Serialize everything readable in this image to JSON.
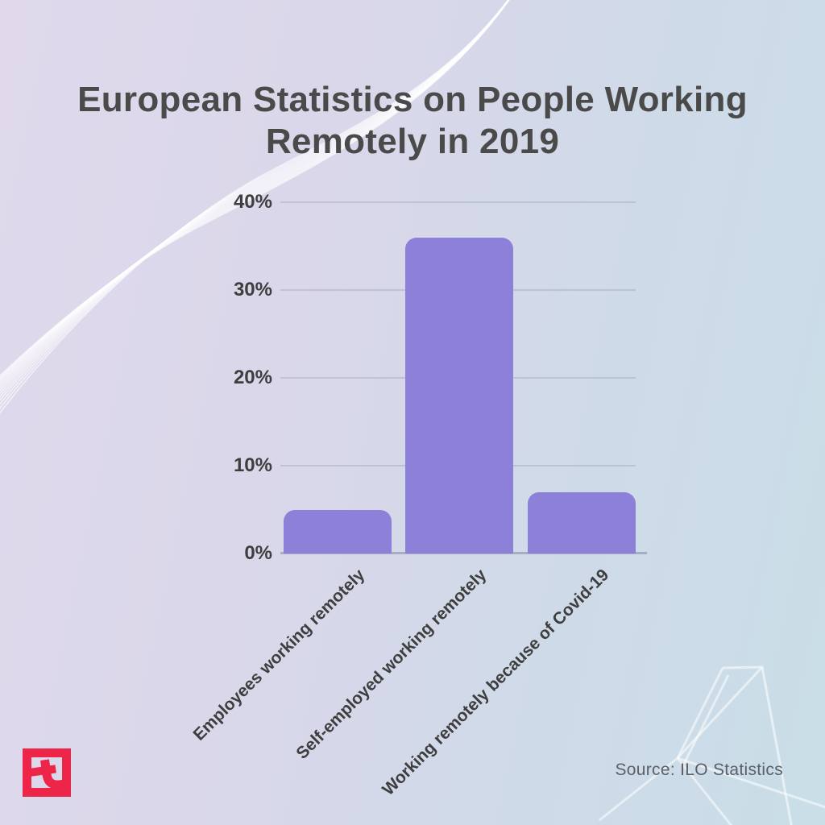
{
  "title": {
    "lines": [
      "European Statistics on People Working",
      "Remotely in 2019"
    ]
  },
  "source": {
    "label": "Source: ILO Statistics"
  },
  "logo": {
    "name": "template-net-logo",
    "color": "#EC2549"
  },
  "colors": {
    "bar": "#8D80D9",
    "title_text": "#4A4A4A",
    "axis_text": "#3E3E3E",
    "grid": "#C2C3D2",
    "background_left": "#DFD8EB",
    "background_right": "#C9DEE7",
    "logo_red": "#EC2549"
  },
  "chart_data": {
    "type": "bar",
    "title": "European Statistics on People Working Remotely in 2019",
    "categories": [
      "Employees working remotely",
      "Self-employed working remotely",
      "Working remotely because of Covid-19"
    ],
    "values": [
      5,
      36,
      7
    ],
    "unit": "%",
    "xlabel": "",
    "ylabel": "",
    "ylim": [
      0,
      40
    ],
    "yticks": [
      {
        "label": "40%",
        "value": 40
      },
      {
        "label": "30%",
        "value": 30
      },
      {
        "label": "20%",
        "value": 20
      },
      {
        "label": "10%",
        "value": 10
      },
      {
        "label": "0%",
        "value": 0
      }
    ],
    "grid": true,
    "legend": false,
    "bar_color": "#8D80D9",
    "source": "Source: ILO Statistics"
  }
}
